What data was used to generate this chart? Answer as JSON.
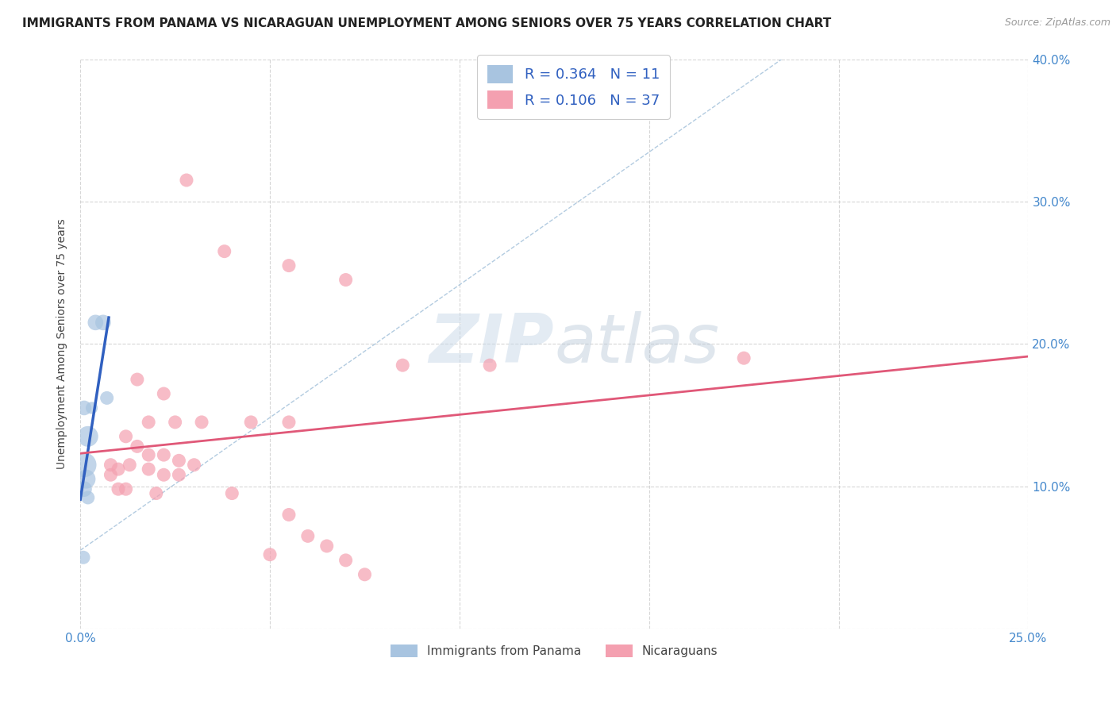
{
  "title": "IMMIGRANTS FROM PANAMA VS NICARAGUAN UNEMPLOYMENT AMONG SENIORS OVER 75 YEARS CORRELATION CHART",
  "source": "Source: ZipAtlas.com",
  "ylabel": "Unemployment Among Seniors over 75 years",
  "xlim": [
    0,
    0.25
  ],
  "ylim": [
    0,
    0.4
  ],
  "xticks": [
    0.0,
    0.05,
    0.1,
    0.15,
    0.2,
    0.25
  ],
  "yticks": [
    0.0,
    0.1,
    0.2,
    0.3,
    0.4
  ],
  "legend_labels": [
    "Immigrants from Panama",
    "Nicaraguans"
  ],
  "r_panama": 0.364,
  "n_panama": 11,
  "r_nicaragua": 0.106,
  "n_nicaragua": 37,
  "watermark_zip": "ZIP",
  "watermark_atlas": "atlas",
  "panama_color": "#a8c4e0",
  "nicaragua_color": "#f4a0b0",
  "panama_line_color": "#3060c0",
  "nicaragua_line_color": "#e05878",
  "panama_scatter": [
    [
      0.004,
      0.215
    ],
    [
      0.006,
      0.215
    ],
    [
      0.001,
      0.155
    ],
    [
      0.003,
      0.155
    ],
    [
      0.002,
      0.135
    ],
    [
      0.001,
      0.115
    ],
    [
      0.0015,
      0.105
    ],
    [
      0.001,
      0.098
    ],
    [
      0.002,
      0.092
    ],
    [
      0.0008,
      0.05
    ],
    [
      0.007,
      0.162
    ]
  ],
  "panama_sizes": [
    200,
    200,
    180,
    120,
    350,
    500,
    300,
    200,
    150,
    150,
    150
  ],
  "nicaragua_scatter": [
    [
      0.028,
      0.315
    ],
    [
      0.038,
      0.265
    ],
    [
      0.055,
      0.255
    ],
    [
      0.07,
      0.245
    ],
    [
      0.085,
      0.185
    ],
    [
      0.108,
      0.185
    ],
    [
      0.015,
      0.175
    ],
    [
      0.022,
      0.165
    ],
    [
      0.018,
      0.145
    ],
    [
      0.025,
      0.145
    ],
    [
      0.032,
      0.145
    ],
    [
      0.045,
      0.145
    ],
    [
      0.055,
      0.145
    ],
    [
      0.012,
      0.135
    ],
    [
      0.015,
      0.128
    ],
    [
      0.018,
      0.122
    ],
    [
      0.022,
      0.122
    ],
    [
      0.026,
      0.118
    ],
    [
      0.03,
      0.115
    ],
    [
      0.008,
      0.115
    ],
    [
      0.01,
      0.112
    ],
    [
      0.013,
      0.115
    ],
    [
      0.018,
      0.112
    ],
    [
      0.022,
      0.108
    ],
    [
      0.026,
      0.108
    ],
    [
      0.008,
      0.108
    ],
    [
      0.01,
      0.098
    ],
    [
      0.012,
      0.098
    ],
    [
      0.02,
      0.095
    ],
    [
      0.04,
      0.095
    ],
    [
      0.055,
      0.08
    ],
    [
      0.06,
      0.065
    ],
    [
      0.065,
      0.058
    ],
    [
      0.05,
      0.052
    ],
    [
      0.07,
      0.048
    ],
    [
      0.075,
      0.038
    ],
    [
      0.175,
      0.19
    ]
  ],
  "nicaragua_sizes": [
    150,
    150,
    150,
    150,
    150,
    150,
    150,
    150,
    150,
    150,
    150,
    150,
    150,
    150,
    150,
    150,
    150,
    150,
    150,
    150,
    150,
    150,
    150,
    150,
    150,
    150,
    150,
    150,
    150,
    150,
    150,
    150,
    150,
    150,
    150,
    150,
    150
  ]
}
